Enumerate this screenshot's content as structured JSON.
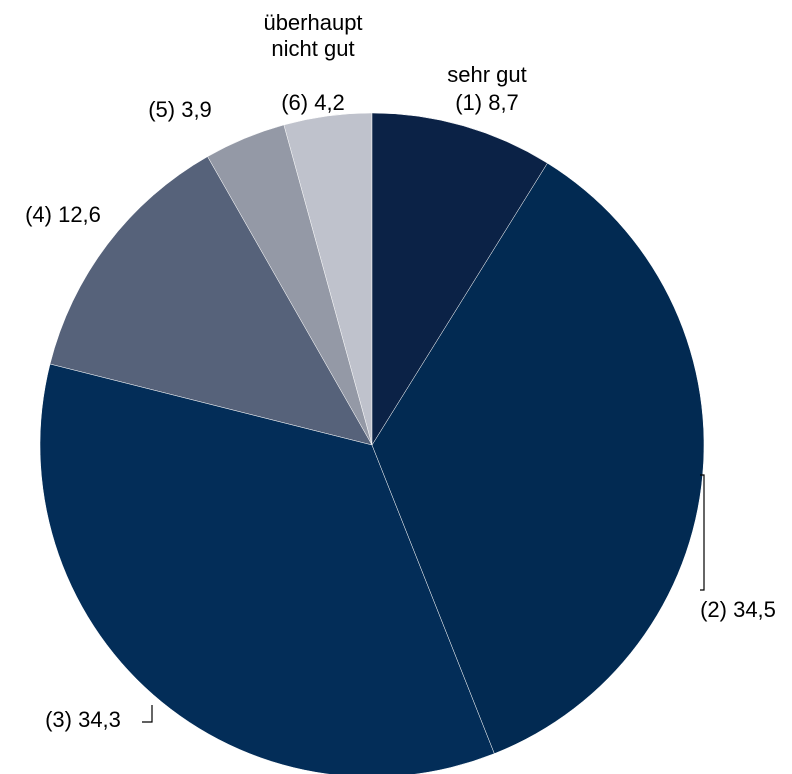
{
  "chart_data": {
    "type": "pie",
    "categories": [
      "sehr gut",
      null,
      null,
      null,
      null,
      "überhaupt nicht gut"
    ],
    "values": [
      8.7,
      34.5,
      34.3,
      12.6,
      3.9,
      4.2
    ],
    "value_labels": [
      "(1) 8,7",
      "(2) 34,5",
      "(3) 34,3",
      "(4) 12,6",
      "(5) 3,9",
      "(6) 4,2"
    ],
    "colors": [
      "#0b2246",
      "#022a52",
      "#032d58",
      "#56627a",
      "#9499a6",
      "#bfc2cc"
    ]
  }
}
